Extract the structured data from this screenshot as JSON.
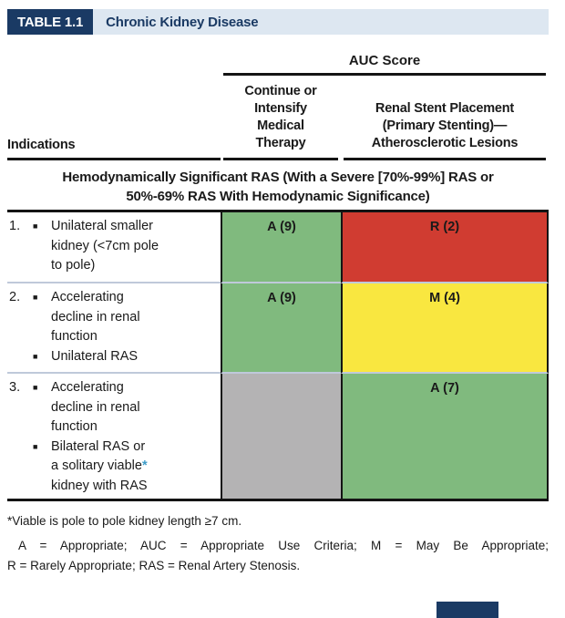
{
  "colors": {
    "navy": "#1a3a64",
    "band_blue": "#dde7f1",
    "green": "#80ba7e",
    "red": "#d03c31",
    "yellow": "#f9e740",
    "gray": "#b4b3b4",
    "star_blue": "#3d9cc8"
  },
  "title": {
    "tag": "TABLE 1.1",
    "text": "Chronic Kidney Disease"
  },
  "header": {
    "auc": "AUC Score",
    "indications": "Indications",
    "col_medical": "Continue or\nIntensify\nMedical\nTherapy",
    "col_stent": "Renal Stent Placement\n(Primary Stenting)—\nAtherosclerotic Lesions"
  },
  "section": {
    "title": "Hemodynamically Significant RAS (With a Severe [70%-99%] RAS or\n50%-69% RAS With Hemodynamic Significance)"
  },
  "bullet_glyph": "■",
  "rows": [
    {
      "number": "1.",
      "bullet1": "Unilateral smaller\nkidney (<7cm pole\nto pole)",
      "medical_score": "A (9)",
      "stent_score": "R (2)"
    },
    {
      "number": "2.",
      "bullet1": "Accelerating\ndecline in renal\nfunction",
      "bullet2": "Unilateral RAS",
      "medical_score": "A (9)",
      "stent_score": "M (4)"
    },
    {
      "number": "3.",
      "bullet1": "Accelerating\ndecline in renal\nfunction",
      "bullet2_pre": "Bilateral RAS or\na solitary viable",
      "bullet2_star": "*",
      "bullet2_post": "\nkidney with RAS",
      "medical_score": "",
      "stent_score": "A (7)"
    }
  ],
  "footnotes": {
    "viable": "*Viable is pole to pole kidney length ≥7 cm.",
    "abbrev_line1": "A = Appropriate; AUC = Appropriate Use Criteria; M = May Be Appropriate;",
    "abbrev_line2": "R = Rarely Appropriate; RAS = Renal Artery Stenosis."
  }
}
